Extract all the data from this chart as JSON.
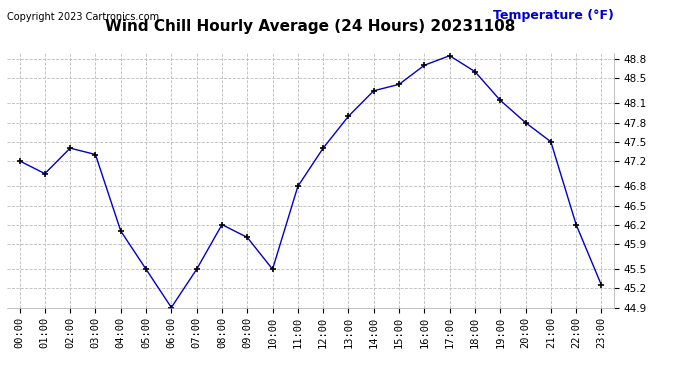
{
  "title": "Wind Chill Hourly Average (24 Hours) 20231108",
  "copyright": "Copyright 2023 Cartronics.com",
  "ylabel": "Temperature (°F)",
  "hours": [
    "00:00",
    "01:00",
    "02:00",
    "03:00",
    "04:00",
    "05:00",
    "06:00",
    "07:00",
    "08:00",
    "09:00",
    "10:00",
    "11:00",
    "12:00",
    "13:00",
    "14:00",
    "15:00",
    "16:00",
    "17:00",
    "18:00",
    "19:00",
    "20:00",
    "21:00",
    "22:00",
    "23:00"
  ],
  "values": [
    47.2,
    47.0,
    47.4,
    47.3,
    46.1,
    45.5,
    44.9,
    45.5,
    46.2,
    46.0,
    45.5,
    46.8,
    47.4,
    47.9,
    48.3,
    48.4,
    48.7,
    48.85,
    48.6,
    48.15,
    47.8,
    47.5,
    46.2,
    45.25
  ],
  "line_color": "#0000cc",
  "marker": "+",
  "marker_color": "#000000",
  "bg_color": "#ffffff",
  "grid_color": "#bbbbbb",
  "ylim_min": 44.9,
  "ylim_max": 48.9,
  "yticks": [
    44.9,
    45.2,
    45.5,
    45.9,
    46.2,
    46.5,
    46.8,
    47.2,
    47.5,
    47.8,
    48.1,
    48.5,
    48.8
  ],
  "title_fontsize": 11,
  "ylabel_color": "#0000cc",
  "ylabel_fontsize": 9,
  "copyright_fontsize": 7,
  "tick_fontsize": 7.5
}
